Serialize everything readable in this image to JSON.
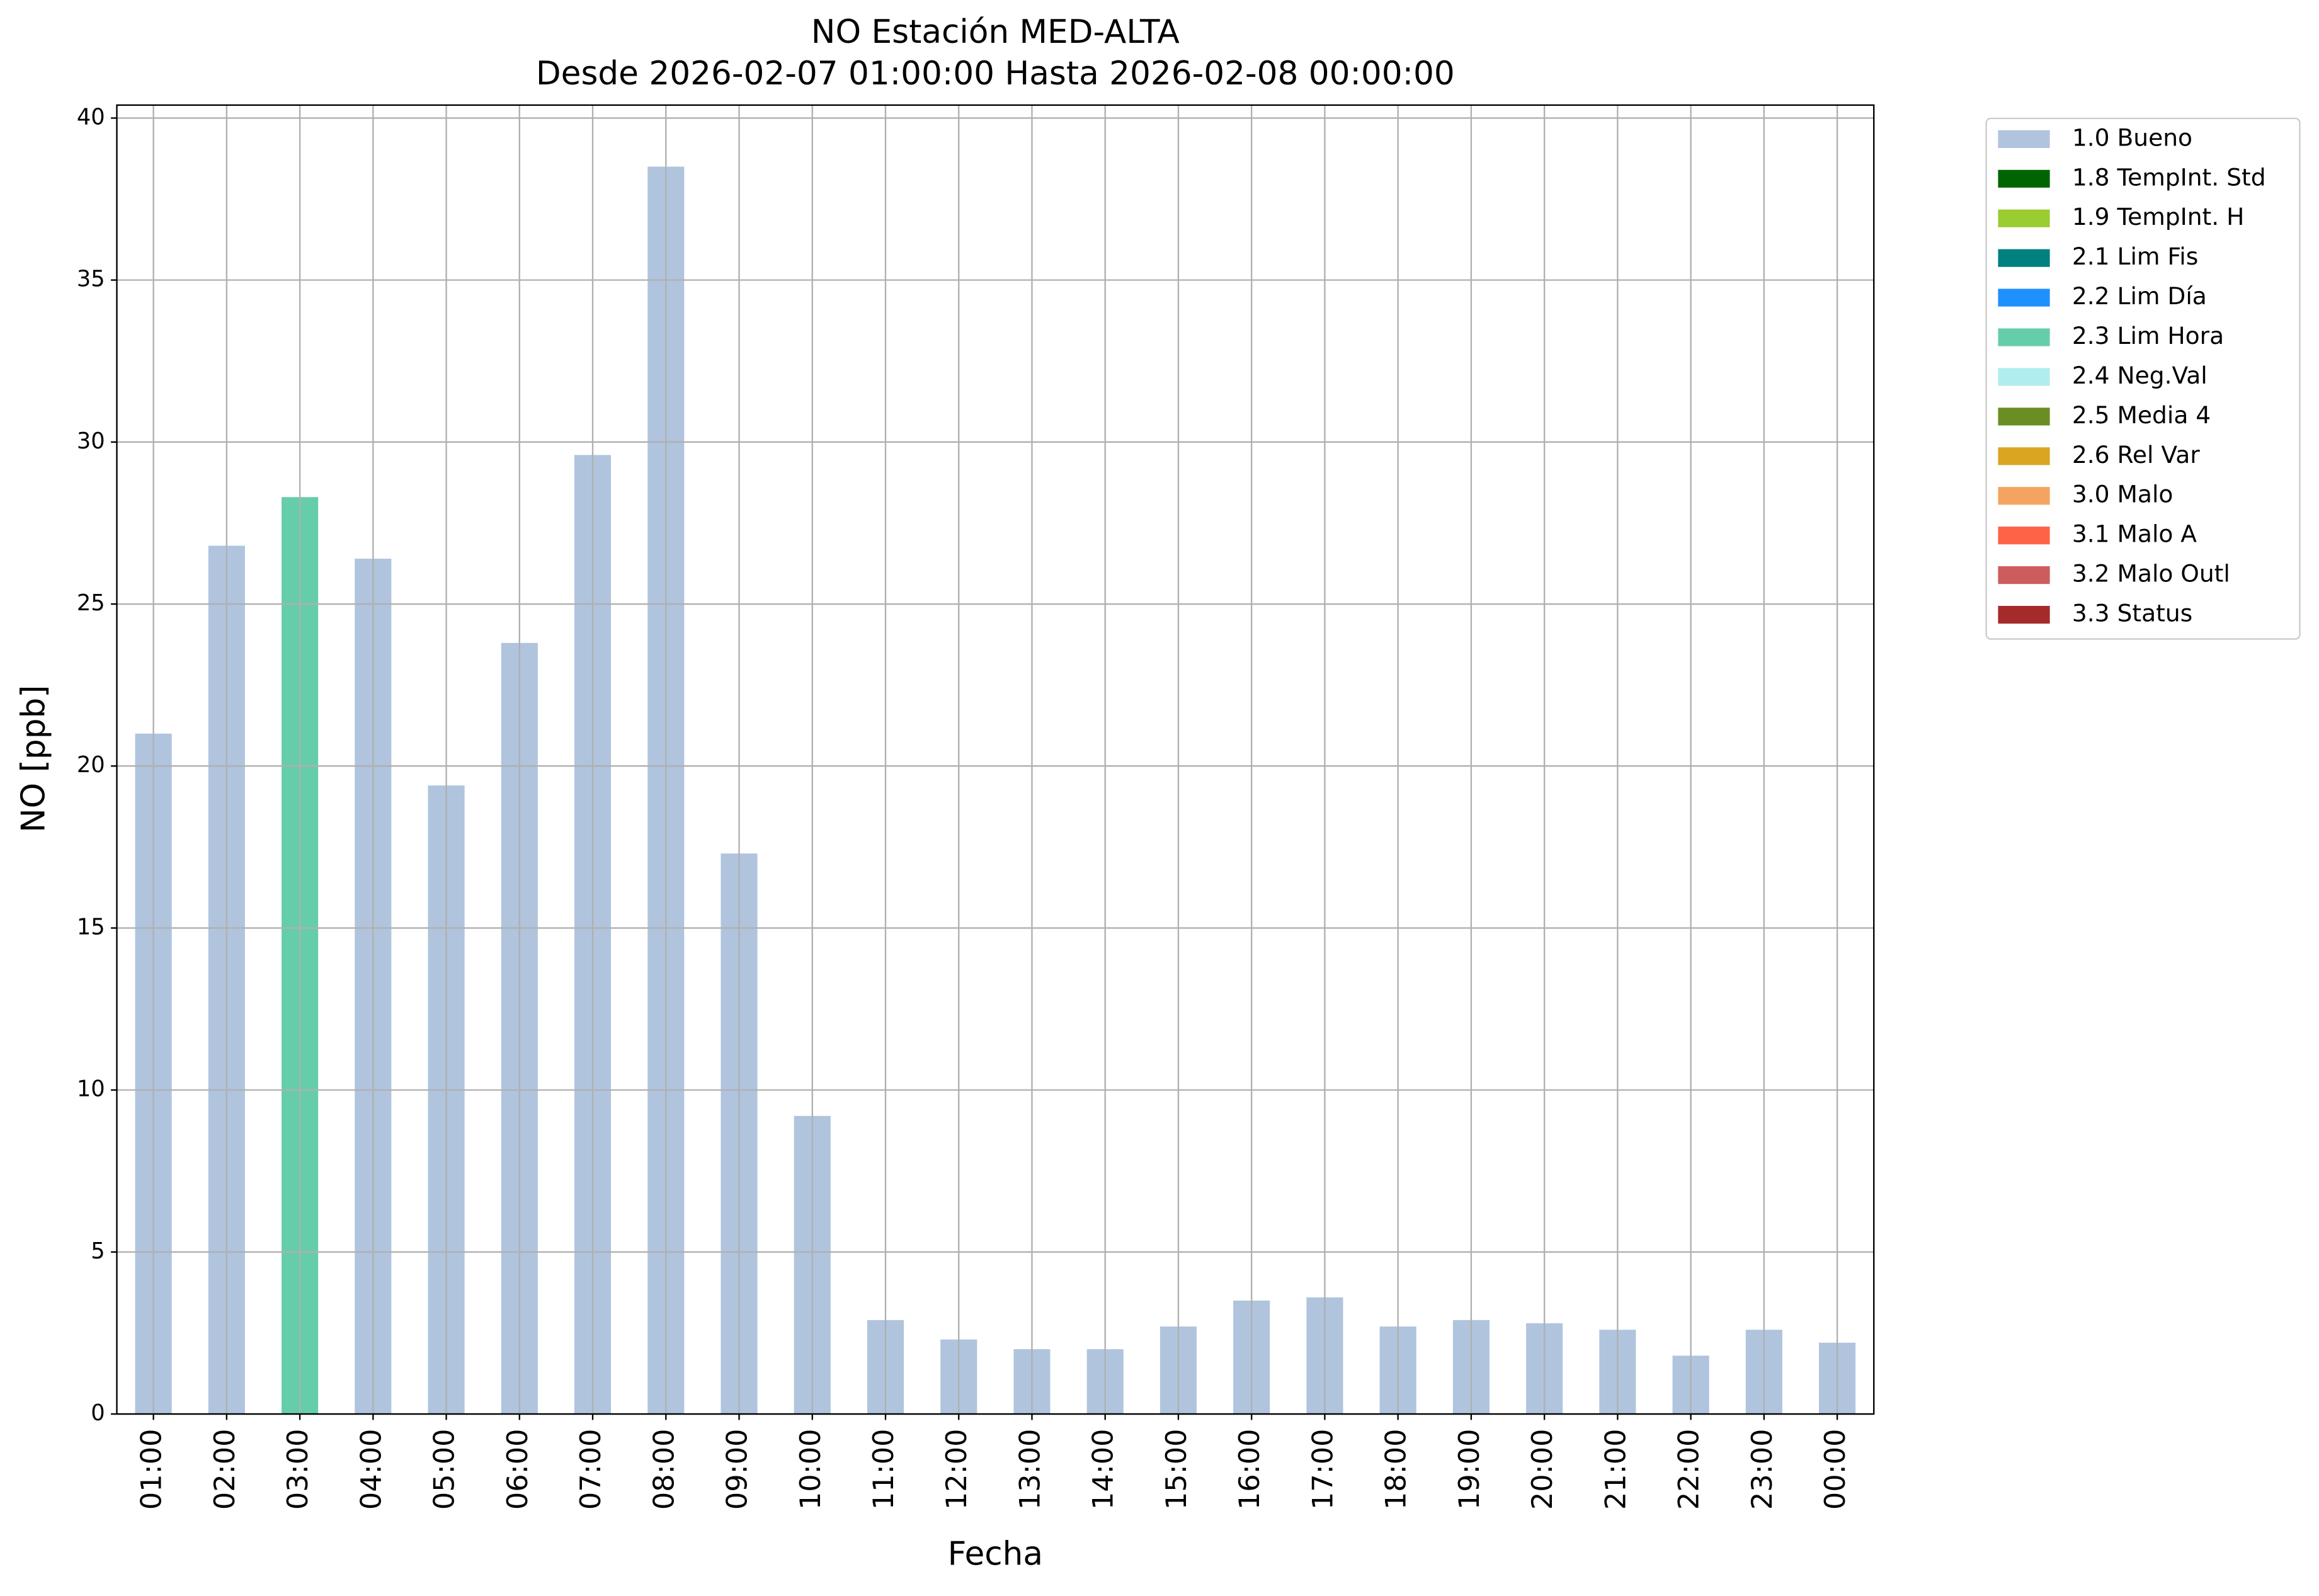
{
  "chart_data": {
    "type": "bar",
    "stacked": true,
    "title": "NO Estación MED-ALTA",
    "subtitle": "Desde 2026-02-07 01:00:00 Hasta 2026-02-08 00:00:00",
    "x_label": "Fecha",
    "y_label": "NO [ppb]",
    "categories": [
      "01:00",
      "02:00",
      "03:00",
      "04:00",
      "05:00",
      "06:00",
      "07:00",
      "08:00",
      "09:00",
      "10:00",
      "11:00",
      "12:00",
      "13:00",
      "14:00",
      "15:00",
      "16:00",
      "17:00",
      "18:00",
      "19:00",
      "20:00",
      "21:00",
      "22:00",
      "23:00",
      "00:00"
    ],
    "series": [
      {
        "name": "1.0 Bueno",
        "color": "#b0c4de",
        "values": [
          21.0,
          26.8,
          null,
          26.4,
          19.4,
          23.8,
          29.6,
          38.5,
          17.3,
          9.2,
          2.9,
          2.3,
          2.0,
          2.0,
          2.7,
          3.5,
          3.6,
          2.7,
          2.9,
          2.8,
          2.6,
          1.8,
          2.6,
          2.2
        ]
      },
      {
        "name": "1.8 TempInt. Std",
        "color": "#006400",
        "values": [
          null,
          null,
          null,
          null,
          null,
          null,
          null,
          null,
          null,
          null,
          null,
          null,
          null,
          null,
          null,
          null,
          null,
          null,
          null,
          null,
          null,
          null,
          null,
          null
        ]
      },
      {
        "name": "1.9 TempInt. H",
        "color": "#9acd32",
        "values": [
          null,
          null,
          null,
          null,
          null,
          null,
          null,
          null,
          null,
          null,
          null,
          null,
          null,
          null,
          null,
          null,
          null,
          null,
          null,
          null,
          null,
          null,
          null,
          null
        ]
      },
      {
        "name": "2.1 Lim Fis",
        "color": "#008080",
        "values": [
          null,
          null,
          null,
          null,
          null,
          null,
          null,
          null,
          null,
          null,
          null,
          null,
          null,
          null,
          null,
          null,
          null,
          null,
          null,
          null,
          null,
          null,
          null,
          null
        ]
      },
      {
        "name": "2.2 Lim Día",
        "color": "#1e90ff",
        "values": [
          null,
          null,
          null,
          null,
          null,
          null,
          null,
          null,
          null,
          null,
          null,
          null,
          null,
          null,
          null,
          null,
          null,
          null,
          null,
          null,
          null,
          null,
          null,
          null
        ]
      },
      {
        "name": "2.3 Lim Hora",
        "color": "#66cdaa",
        "values": [
          null,
          null,
          28.3,
          null,
          null,
          null,
          null,
          null,
          null,
          null,
          null,
          null,
          null,
          null,
          null,
          null,
          null,
          null,
          null,
          null,
          null,
          null,
          null,
          null
        ]
      },
      {
        "name": "2.4 Neg.Val",
        "color": "#afeeee",
        "values": [
          null,
          null,
          null,
          null,
          null,
          null,
          null,
          null,
          null,
          null,
          null,
          null,
          null,
          null,
          null,
          null,
          null,
          null,
          null,
          null,
          null,
          null,
          null,
          null
        ]
      },
      {
        "name": "2.5 Media 4",
        "color": "#6b8e23",
        "values": [
          null,
          null,
          null,
          null,
          null,
          null,
          null,
          null,
          null,
          null,
          null,
          null,
          null,
          null,
          null,
          null,
          null,
          null,
          null,
          null,
          null,
          null,
          null,
          null
        ]
      },
      {
        "name": "2.6 Rel Var",
        "color": "#daa520",
        "values": [
          null,
          null,
          null,
          null,
          null,
          null,
          null,
          null,
          null,
          null,
          null,
          null,
          null,
          null,
          null,
          null,
          null,
          null,
          null,
          null,
          null,
          null,
          null,
          null
        ]
      },
      {
        "name": "3.0 Malo",
        "color": "#f4a460",
        "values": [
          null,
          null,
          null,
          null,
          null,
          null,
          null,
          null,
          null,
          null,
          null,
          null,
          null,
          null,
          null,
          null,
          null,
          null,
          null,
          null,
          null,
          null,
          null,
          null
        ]
      },
      {
        "name": "3.1 Malo A",
        "color": "#ff6347",
        "values": [
          null,
          null,
          null,
          null,
          null,
          null,
          null,
          null,
          null,
          null,
          null,
          null,
          null,
          null,
          null,
          null,
          null,
          null,
          null,
          null,
          null,
          null,
          null,
          null
        ]
      },
      {
        "name": "3.2 Malo Outl",
        "color": "#cd5c5c",
        "values": [
          null,
          null,
          null,
          null,
          null,
          null,
          null,
          null,
          null,
          null,
          null,
          null,
          null,
          null,
          null,
          null,
          null,
          null,
          null,
          null,
          null,
          null,
          null,
          null
        ]
      },
      {
        "name": "3.3 Status",
        "color": "#a52a2a",
        "values": [
          null,
          null,
          null,
          null,
          null,
          null,
          null,
          null,
          null,
          null,
          null,
          null,
          null,
          null,
          null,
          null,
          null,
          null,
          null,
          null,
          null,
          null,
          null,
          null
        ]
      }
    ],
    "ylim": [
      0,
      40.4
    ],
    "yticks": [
      0,
      5,
      10,
      15,
      20,
      25,
      30,
      35,
      40
    ],
    "grid": true,
    "legend": "outside-right"
  }
}
